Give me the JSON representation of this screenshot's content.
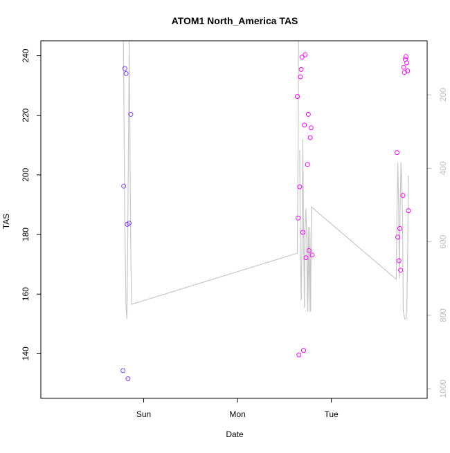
{
  "chart_data": {
    "type": "scatter",
    "title": "ATOM1 North_America TAS",
    "xlabel": "Date",
    "ylabel": "TAS",
    "ylim": [
      125,
      245
    ],
    "yticks": [
      140,
      160,
      180,
      200,
      220,
      240
    ],
    "x_axis": {
      "unit": "hours since Sat 00:00",
      "range": [
        -2.3,
        96.5
      ],
      "ticks": [
        {
          "label": "Sun",
          "x": 24
        },
        {
          "label": "Mon",
          "x": 48
        },
        {
          "label": "Tue",
          "x": 72
        }
      ]
    },
    "y2_axis": {
      "reversed": true,
      "range": [
        1026,
        53
      ],
      "ticks": [
        200,
        400,
        600,
        800,
        1000
      ],
      "color": "#bebebe"
    },
    "series": [
      {
        "kind": "points",
        "color": "#7f3fff",
        "points": [
          {
            "x": 18.7,
            "y": 134.3
          },
          {
            "x": 18.9,
            "y": 196.2
          },
          {
            "x": 19.2,
            "y": 235.7
          },
          {
            "x": 19.5,
            "y": 234.0
          },
          {
            "x": 19.8,
            "y": 183.4
          },
          {
            "x": 20.0,
            "y": 131.6
          },
          {
            "x": 20.3,
            "y": 183.8
          },
          {
            "x": 20.7,
            "y": 220.3
          }
        ]
      },
      {
        "kind": "points",
        "color": "#ff00ff",
        "points": [
          {
            "x": 63.3,
            "y": 226.3
          },
          {
            "x": 63.5,
            "y": 185.5
          },
          {
            "x": 63.7,
            "y": 139.6
          },
          {
            "x": 63.9,
            "y": 196.0
          },
          {
            "x": 64.1,
            "y": 232.9
          },
          {
            "x": 64.3,
            "y": 235.4
          },
          {
            "x": 64.5,
            "y": 239.5
          },
          {
            "x": 64.7,
            "y": 180.7
          },
          {
            "x": 64.9,
            "y": 141.1
          },
          {
            "x": 65.1,
            "y": 216.7
          },
          {
            "x": 65.3,
            "y": 240.3
          },
          {
            "x": 65.5,
            "y": 172.2
          },
          {
            "x": 65.9,
            "y": 203.5
          },
          {
            "x": 66.1,
            "y": 220.3
          },
          {
            "x": 66.3,
            "y": 174.6
          },
          {
            "x": 66.6,
            "y": 212.5
          },
          {
            "x": 66.8,
            "y": 215.8
          },
          {
            "x": 67.1,
            "y": 173.1
          },
          {
            "x": 88.8,
            "y": 207.5
          },
          {
            "x": 89.0,
            "y": 179.1
          },
          {
            "x": 89.3,
            "y": 171.2
          },
          {
            "x": 89.5,
            "y": 182.0
          },
          {
            "x": 89.7,
            "y": 168.0
          },
          {
            "x": 90.3,
            "y": 193.1
          },
          {
            "x": 90.5,
            "y": 236.1
          },
          {
            "x": 90.7,
            "y": 234.4
          },
          {
            "x": 90.9,
            "y": 238.8
          },
          {
            "x": 91.1,
            "y": 239.7
          },
          {
            "x": 91.3,
            "y": 237.6
          },
          {
            "x": 91.5,
            "y": 234.9
          },
          {
            "x": 91.7,
            "y": 188.0
          }
        ]
      },
      {
        "kind": "line",
        "axis": "right",
        "color": "#c8c8c8",
        "segments": [
          [
            {
              "x": 18.8,
              "y": 53
            },
            {
              "x": 19.0,
              "y": 300
            },
            {
              "x": 19.2,
              "y": 560
            },
            {
              "x": 19.5,
              "y": 780
            },
            {
              "x": 19.7,
              "y": 810
            },
            {
              "x": 19.9,
              "y": 620
            },
            {
              "x": 20.1,
              "y": 350
            },
            {
              "x": 20.3,
              "y": 53
            },
            {
              "x": 20.5,
              "y": 350
            },
            {
              "x": 20.7,
              "y": 620
            },
            {
              "x": 20.9,
              "y": 770
            },
            {
              "x": 63.3,
              "y": 631
            },
            {
              "x": 63.5,
              "y": 330
            },
            {
              "x": 63.6,
              "y": 53
            }
          ],
          [
            {
              "x": 63.9,
              "y": 350
            },
            {
              "x": 64.1,
              "y": 640
            },
            {
              "x": 64.3,
              "y": 760
            },
            {
              "x": 64.5,
              "y": 590
            },
            {
              "x": 64.7,
              "y": 320
            },
            {
              "x": 64.9,
              "y": 560
            },
            {
              "x": 65.1,
              "y": 780
            },
            {
              "x": 65.3,
              "y": 560
            },
            {
              "x": 65.5,
              "y": 510
            },
            {
              "x": 65.7,
              "y": 590
            },
            {
              "x": 65.9,
              "y": 790
            },
            {
              "x": 66.1,
              "y": 560
            },
            {
              "x": 66.3,
              "y": 790
            },
            {
              "x": 66.5,
              "y": 560
            },
            {
              "x": 66.7,
              "y": 790
            },
            {
              "x": 66.9,
              "y": 505
            },
            {
              "x": 88.6,
              "y": 702
            },
            {
              "x": 88.8,
              "y": 500
            },
            {
              "x": 89.0,
              "y": 384
            },
            {
              "x": 89.2,
              "y": 500
            },
            {
              "x": 89.4,
              "y": 700
            },
            {
              "x": 89.6,
              "y": 500
            },
            {
              "x": 89.8,
              "y": 384
            },
            {
              "x": 90.0,
              "y": 440
            },
            {
              "x": 90.2,
              "y": 520
            },
            {
              "x": 90.4,
              "y": 790
            },
            {
              "x": 90.6,
              "y": 800
            },
            {
              "x": 90.8,
              "y": 810
            },
            {
              "x": 91.1,
              "y": 810
            },
            {
              "x": 91.3,
              "y": 780
            },
            {
              "x": 91.5,
              "y": 640
            },
            {
              "x": 91.7,
              "y": 420
            }
          ]
        ]
      }
    ]
  }
}
